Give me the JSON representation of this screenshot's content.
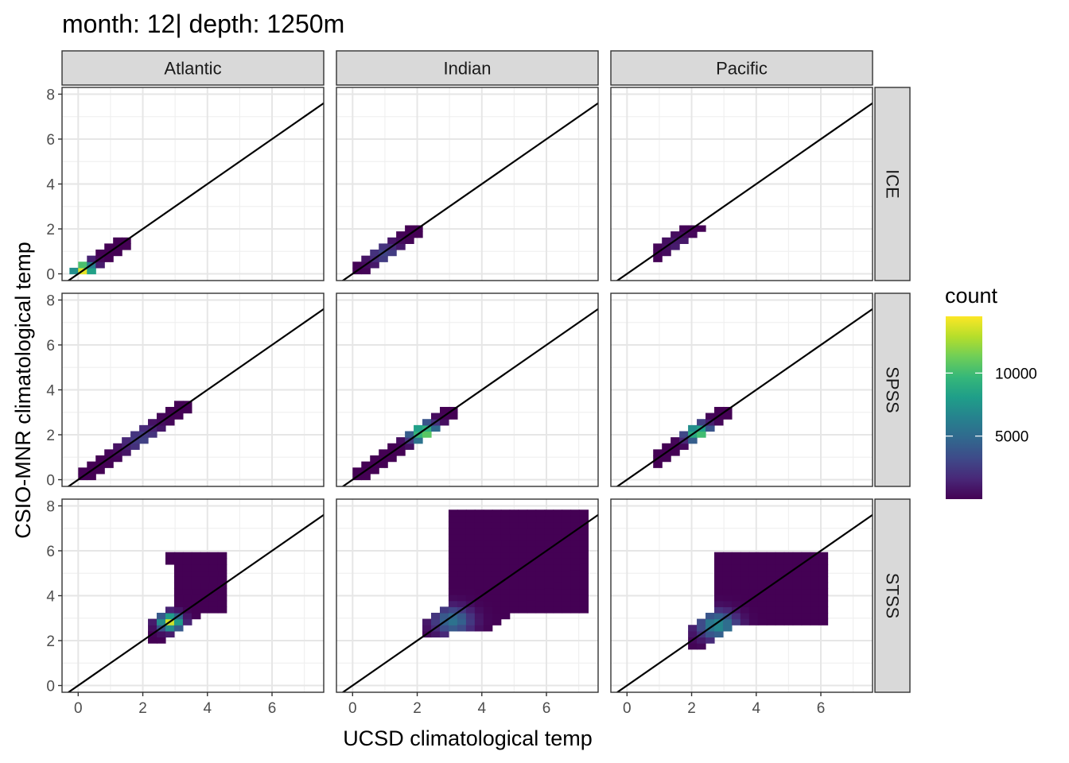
{
  "chart_data": {
    "type": "heatmap",
    "title": "month: 12| depth: 1250m",
    "xlabel": "UCSD climatological temp",
    "ylabel": "CSIO-MNR climatological temp",
    "xlim": [
      -0.5,
      7.6
    ],
    "ylim": [
      -0.3,
      8.3
    ],
    "x_ticks": [
      "0",
      "2",
      "4",
      "6"
    ],
    "y_ticks": [
      "0",
      "2",
      "4",
      "6",
      "8"
    ],
    "grid": true,
    "reference_line": {
      "slope": 1,
      "intercept": 0
    },
    "columns": [
      "Atlantic",
      "Indian",
      "Pacific"
    ],
    "rows": [
      "ICE",
      "SPSS",
      "STSS"
    ],
    "legend": {
      "title": "count",
      "position": "right",
      "breaks": [
        5000,
        10000
      ],
      "break_labels": [
        "5000",
        "10000"
      ],
      "min": 1,
      "max": 14500,
      "colors": [
        "#440154",
        "#482878",
        "#3e4a89",
        "#31688e",
        "#26828e",
        "#1f9e89",
        "#35b779",
        "#6ece58",
        "#b5de2b",
        "#fde725"
      ]
    },
    "bin_width": 0.27,
    "panels": [
      {
        "column": "Atlantic",
        "row": "ICE",
        "regions": [
          {
            "x": [
              -0.2,
              1.45
            ],
            "y": [
              0.0,
              1.4
            ],
            "slope": 1,
            "band": 0.9,
            "center": [
              0.15,
              0.2
            ],
            "spread": 0.35,
            "peak": 14500
          }
        ]
      },
      {
        "column": "Indian",
        "row": "ICE",
        "regions": [
          {
            "x": [
              0.0,
              2.15
            ],
            "y": [
              0.05,
              1.95
            ],
            "slope": 1,
            "band": 0.85,
            "center": [
              1.0,
              0.9
            ],
            "spread": 0.55,
            "peak": 3000
          }
        ]
      },
      {
        "column": "Pacific",
        "row": "ICE",
        "regions": [
          {
            "x": [
              1.0,
              2.35
            ],
            "y": [
              0.5,
              2.15
            ],
            "slope": 1,
            "band": 0.75,
            "center": [
              1.6,
              1.3
            ],
            "spread": 0.5,
            "peak": 1200
          }
        ]
      },
      {
        "column": "Atlantic",
        "row": "SPSS",
        "regions": [
          {
            "x": [
              0.0,
              3.4
            ],
            "y": [
              0.0,
              3.35
            ],
            "slope": 1,
            "band": 0.8,
            "center": [
              2.0,
              1.8
            ],
            "spread": 0.7,
            "peak": 2800
          }
        ]
      },
      {
        "column": "Indian",
        "row": "SPSS",
        "regions": [
          {
            "x": [
              0.2,
              3.15
            ],
            "y": [
              0.2,
              3.15
            ],
            "slope": 1,
            "band": 0.8,
            "center": [
              2.2,
              2.1
            ],
            "spread": 0.45,
            "peak": 11500
          }
        ]
      },
      {
        "column": "Pacific",
        "row": "SPSS",
        "regions": [
          {
            "x": [
              1.0,
              3.15
            ],
            "y": [
              0.8,
              3.15
            ],
            "slope": 1,
            "band": 0.75,
            "center": [
              2.2,
              2.1
            ],
            "spread": 0.4,
            "peak": 11000
          }
        ]
      },
      {
        "column": "Atlantic",
        "row": "STSS",
        "regions": [
          {
            "x": [
              2.2,
              4.55
            ],
            "y": [
              2.1,
              5.25
            ],
            "slope": 1,
            "band": 1.3,
            "center": [
              2.85,
              2.85
            ],
            "spread": 0.35,
            "peak": 13500
          },
          {
            "x": [
              3.0,
              4.55
            ],
            "y": [
              3.3,
              5.25
            ],
            "slope": 0,
            "band": 9,
            "center": [
              2.85,
              2.85
            ],
            "spread": 0.35,
            "peak": 1
          },
          {
            "x": [
              2.9,
              4.55
            ],
            "y": [
              5.55,
              5.85
            ],
            "slope": 0,
            "band": 9,
            "center": [
              3.7,
              5.7
            ],
            "spread": 1,
            "peak": 1
          }
        ]
      },
      {
        "column": "Indian",
        "row": "STSS",
        "regions": [
          {
            "x": [
              2.2,
              3.5
            ],
            "y": [
              2.25,
              4.5
            ],
            "slope": 1,
            "band": 1.4,
            "center": [
              3.1,
              2.9
            ],
            "spread": 0.6,
            "peak": 5500
          },
          {
            "x": [
              3.2,
              7.2
            ],
            "y": [
              2.5,
              7.7
            ],
            "slope": 1,
            "band": 3.3,
            "center": [
              3.1,
              2.9
            ],
            "spread": 0.6,
            "peak": 5500
          },
          {
            "x": [
              3.2,
              7.2
            ],
            "y": [
              3.35,
              7.7
            ],
            "slope": 0,
            "band": 99,
            "center": [
              3.1,
              2.9
            ],
            "spread": 0.6,
            "peak": 5500
          },
          {
            "x": [
              3.5,
              7.2
            ],
            "y": [
              4.3,
              7.7
            ],
            "slope": 0,
            "band": 99,
            "center": [
              3.1,
              2.9
            ],
            "spread": 0.6,
            "peak": 5500
          }
        ]
      },
      {
        "column": "Pacific",
        "row": "STSS",
        "regions": [
          {
            "x": [
              1.9,
              3.8
            ],
            "y": [
              1.85,
              5.8
            ],
            "slope": 1,
            "band": 1.6,
            "center": [
              2.8,
              2.7
            ],
            "spread": 0.6,
            "peak": 7000
          },
          {
            "x": [
              2.8,
              6.05
            ],
            "y": [
              2.85,
              5.85
            ],
            "slope": 0,
            "band": 99,
            "center": [
              2.8,
              2.7
            ],
            "spread": 0.6,
            "peak": 7000
          }
        ]
      }
    ]
  }
}
